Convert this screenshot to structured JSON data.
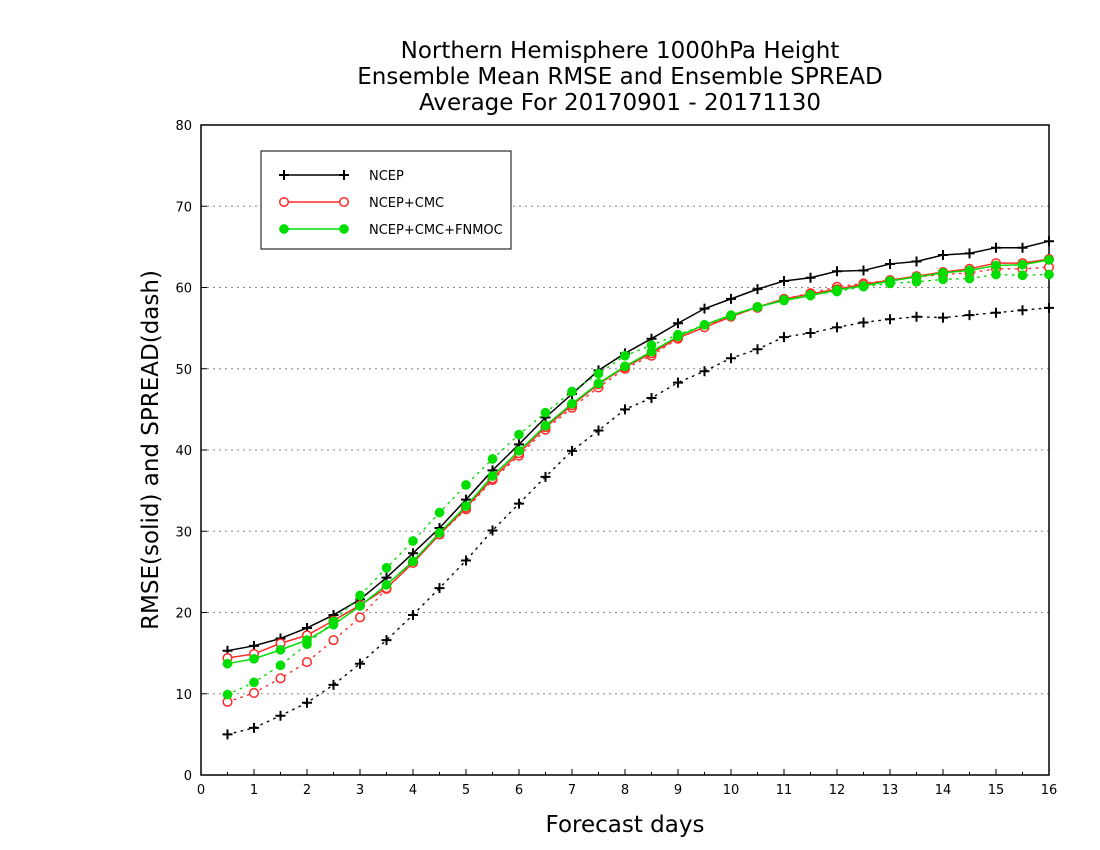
{
  "chart_data": {
    "type": "line",
    "title": [
      "Northern Hemisphere 1000hPa Height",
      "Ensemble Mean RMSE and Ensemble SPREAD",
      "Average For 20170901 - 20171130"
    ],
    "xlabel": "Forecast days",
    "ylabel": "RMSE(solid) and SPREAD(dash)",
    "xlim": [
      0,
      16
    ],
    "ylim": [
      0,
      80
    ],
    "xticks": [
      0,
      1,
      2,
      3,
      4,
      5,
      6,
      7,
      8,
      9,
      10,
      11,
      12,
      13,
      14,
      15,
      16
    ],
    "yticks": [
      0,
      10,
      20,
      30,
      40,
      50,
      60,
      70,
      80
    ],
    "grid": "horizontal dotted",
    "legend_position": "top-left",
    "x": [
      0.5,
      1,
      1.5,
      2,
      2.5,
      3,
      3.5,
      4,
      4.5,
      5,
      5.5,
      6,
      6.5,
      7,
      7.5,
      8,
      8.5,
      9,
      9.5,
      10,
      10.5,
      11,
      11.5,
      12,
      12.5,
      13,
      13.5,
      14,
      14.5,
      15,
      15.5,
      16
    ],
    "series": [
      {
        "name": "NCEP",
        "color": "#000000",
        "marker": "plus",
        "rmse": [
          15.3,
          15.9,
          16.8,
          18.1,
          19.7,
          21.6,
          24.3,
          27.3,
          30.4,
          33.9,
          37.5,
          40.7,
          44.0,
          46.9,
          49.8,
          51.9,
          53.7,
          55.6,
          57.4,
          58.6,
          59.8,
          60.8,
          61.2,
          62.0,
          62.1,
          62.9,
          63.2,
          64.0,
          64.2,
          64.9,
          64.9,
          65.7
        ],
        "spread": [
          5.0,
          5.8,
          7.3,
          8.9,
          11.1,
          13.7,
          16.6,
          19.7,
          23.0,
          26.4,
          30.1,
          33.4,
          36.7,
          39.9,
          42.4,
          45.0,
          46.4,
          48.3,
          49.7,
          51.3,
          52.4,
          53.9,
          54.4,
          55.1,
          55.7,
          56.1,
          56.4,
          56.3,
          56.6,
          56.9,
          57.2,
          57.5
        ]
      },
      {
        "name": "NCEP+CMC",
        "color": "#ff2a2a",
        "marker": "open-circle",
        "rmse": [
          14.4,
          14.9,
          16.2,
          17.2,
          19.0,
          20.9,
          23.0,
          26.1,
          29.6,
          32.9,
          36.5,
          39.6,
          42.8,
          45.5,
          48.1,
          50.2,
          51.9,
          53.8,
          55.1,
          56.4,
          57.6,
          58.6,
          59.2,
          59.8,
          60.4,
          60.9,
          61.4,
          61.9,
          62.3,
          63.0,
          63.0,
          63.5
        ],
        "spread": [
          9.0,
          10.1,
          11.9,
          13.9,
          16.6,
          19.4,
          22.9,
          26.2,
          29.6,
          32.7,
          36.3,
          39.3,
          42.5,
          45.2,
          47.7,
          50.0,
          51.6,
          53.7,
          55.2,
          56.5,
          57.5,
          58.6,
          59.3,
          60.1,
          60.5,
          60.9,
          61.3,
          61.6,
          61.8,
          62.3,
          62.3,
          62.5
        ]
      },
      {
        "name": "NCEP+CMC+FNMOC",
        "color": "#00dd00",
        "marker": "filled-circle",
        "rmse": [
          13.7,
          14.3,
          15.4,
          16.6,
          18.5,
          20.8,
          23.4,
          26.3,
          29.8,
          33.1,
          36.8,
          39.9,
          43.0,
          45.7,
          48.2,
          50.3,
          52.1,
          54.0,
          55.4,
          56.6,
          57.6,
          58.4,
          59.0,
          59.7,
          60.2,
          60.8,
          61.3,
          61.8,
          62.1,
          62.7,
          62.8,
          63.4
        ],
        "spread": [
          9.9,
          11.4,
          13.5,
          16.1,
          18.9,
          22.1,
          25.5,
          28.8,
          32.3,
          35.7,
          38.9,
          41.9,
          44.6,
          47.2,
          49.4,
          51.6,
          52.9,
          54.2,
          55.4,
          56.5,
          57.6,
          58.5,
          59.1,
          59.5,
          60.1,
          60.5,
          60.7,
          61.0,
          61.1,
          61.6,
          61.5,
          61.6
        ]
      }
    ]
  }
}
